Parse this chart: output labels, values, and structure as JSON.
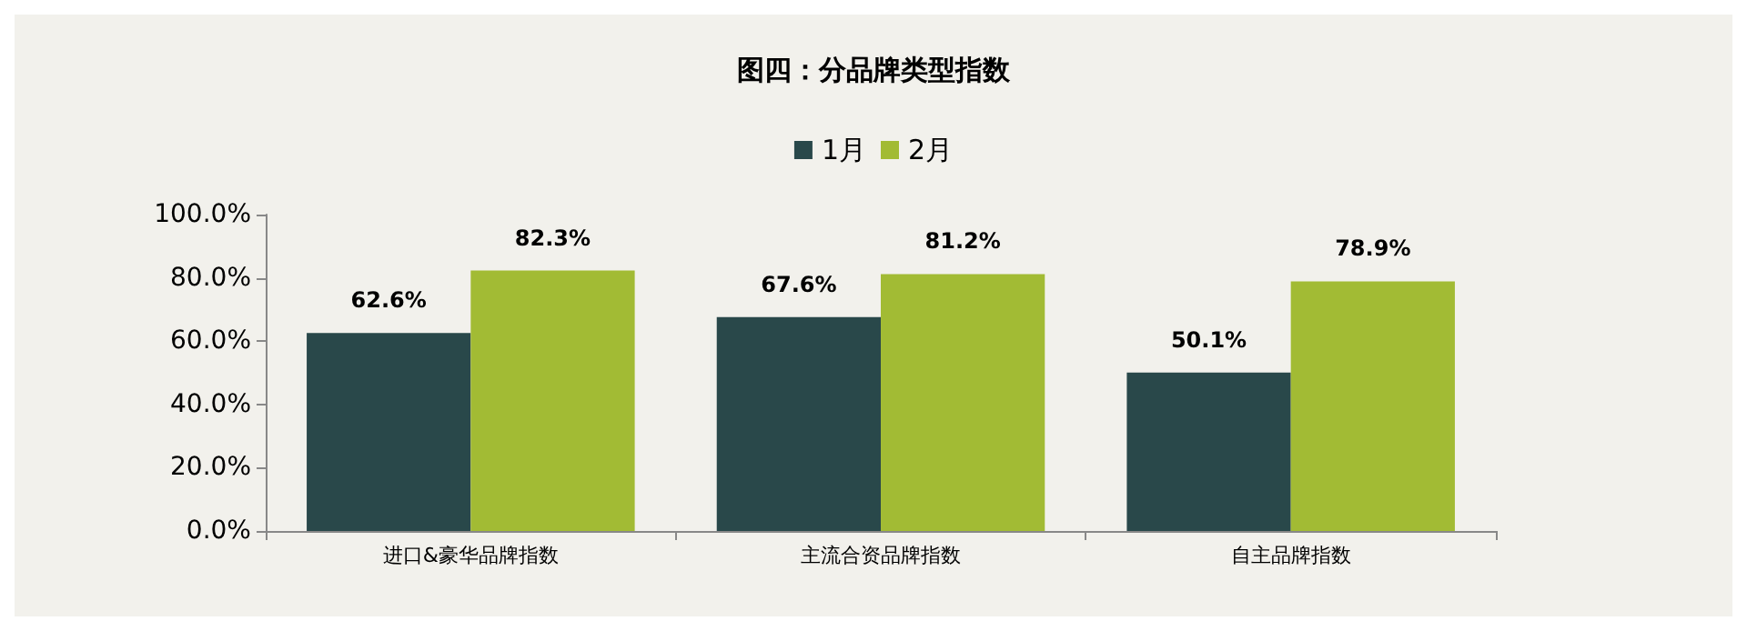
{
  "chart_data": {
    "type": "bar",
    "title": "图四：分品牌类型指数",
    "categories": [
      "进口&豪华品牌指数",
      "主流合资品牌指数",
      "自主品牌指数"
    ],
    "series": [
      {
        "name": "1月",
        "color": "#29484a",
        "values": [
          62.6,
          67.6,
          50.1
        ],
        "value_labels": [
          "62.6%",
          "67.6%",
          "50.1%"
        ]
      },
      {
        "name": "2月",
        "color": "#a2bb34",
        "values": [
          82.3,
          81.2,
          78.9
        ],
        "value_labels": [
          "82.3%",
          "81.2%",
          "78.9%"
        ]
      }
    ],
    "ylim": [
      0,
      100
    ],
    "yticks": [
      {
        "value": 0,
        "label": "0.0%"
      },
      {
        "value": 20,
        "label": "20.0%"
      },
      {
        "value": 40,
        "label": "40.0%"
      },
      {
        "value": 60,
        "label": "60.0%"
      },
      {
        "value": 80,
        "label": "80.0%"
      },
      {
        "value": 100,
        "label": "100.0%"
      }
    ],
    "grid": false,
    "legend": "top"
  }
}
